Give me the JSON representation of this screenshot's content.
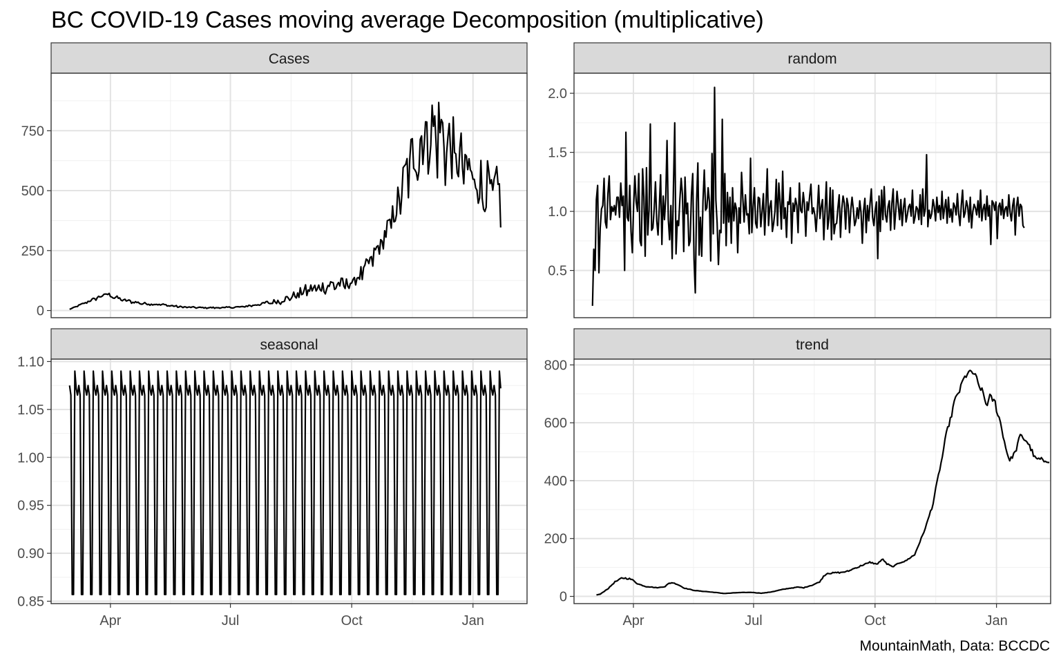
{
  "chart_data": {
    "type": "line",
    "title": "BC COVID-19 Cases moving average Decomposition (multiplicative)",
    "caption": "MountainMath, Data: BCCDC",
    "xlabel": "",
    "ylabel": "",
    "x_axis": {
      "tick_labels": [
        "Apr",
        "Jul",
        "Oct",
        "Jan"
      ],
      "tick_days": [
        31,
        122,
        214,
        306
      ],
      "minor_days": [
        76.5,
        168,
        260
      ],
      "xlim": [
        -14,
        347
      ]
    },
    "panels": [
      {
        "name": "Cases",
        "ylim": [
          -30,
          990
        ],
        "y_ticks": [
          0,
          250,
          500,
          750
        ],
        "y_tick_labels": [
          "0",
          "250",
          "500",
          "750"
        ],
        "y_minor": [
          125,
          375,
          625,
          875
        ],
        "knots": [
          [
            0,
            5
          ],
          [
            15,
            40
          ],
          [
            28,
            70
          ],
          [
            40,
            45
          ],
          [
            55,
            30
          ],
          [
            70,
            25
          ],
          [
            85,
            15
          ],
          [
            100,
            12
          ],
          [
            115,
            12
          ],
          [
            130,
            15
          ],
          [
            145,
            28
          ],
          [
            160,
            42
          ],
          [
            170,
            62
          ],
          [
            180,
            88
          ],
          [
            190,
            98
          ],
          [
            200,
            112
          ],
          [
            210,
            112
          ],
          [
            215,
            122
          ],
          [
            225,
            180
          ],
          [
            232,
            245
          ],
          [
            238,
            305
          ],
          [
            244,
            375
          ],
          [
            250,
            470
          ],
          [
            256,
            590
          ],
          [
            262,
            680
          ],
          [
            268,
            740
          ],
          [
            274,
            768
          ],
          [
            280,
            770
          ],
          [
            286,
            720
          ],
          [
            292,
            660
          ],
          [
            298,
            620
          ],
          [
            304,
            580
          ],
          [
            310,
            555
          ],
          [
            316,
            520
          ],
          [
            322,
            500
          ],
          [
            327,
            490
          ]
        ],
        "wiggle": [
          [
            0,
            0.1
          ],
          [
            170,
            0.28
          ],
          [
            215,
            0.22
          ],
          [
            245,
            0.15
          ],
          [
            262,
            0.2
          ],
          [
            327,
            0.22
          ]
        ]
      },
      {
        "name": "random",
        "ylim": [
          0.1,
          2.17
        ],
        "y_ticks": [
          0.5,
          1.0,
          1.5,
          2.0
        ],
        "y_tick_labels": [
          "0.5",
          "1.0",
          "1.5",
          "2.0"
        ],
        "y_minor": [
          0.25,
          0.75,
          1.25,
          1.75
        ],
        "series": [
          0.2,
          0.68,
          0.5,
          1.1,
          1.22,
          0.48,
          0.86,
          1.02,
          1.05,
          1.28,
          0.91,
          0.86,
          1.15,
          1.3,
          0.93,
          1.04,
          1.0,
          1.05,
          0.97,
          1.12,
          1.12,
          0.95,
          1.24,
          1.05,
          1.13,
          0.5,
          1.67,
          0.95,
          0.92,
          1.22,
          0.83,
          0.65,
          1.05,
          1.3,
          1.08,
          1.0,
          1.32,
          0.75,
          0.71,
          1.36,
          1.12,
          0.62,
          1.37,
          0.8,
          1.01,
          1.74,
          0.84,
          0.86,
          1.02,
          1.25,
          0.92,
          0.8,
          1.04,
          1.31,
          0.72,
          1.13,
          0.93,
          1.11,
          1.6,
          0.93,
          0.76,
          1.05,
          0.6,
          1.21,
          1.75,
          0.64,
          0.92,
          0.88,
          1.1,
          1.28,
          1.14,
          0.66,
          1.29,
          0.98,
          1.07,
          0.71,
          0.75,
          1.14,
          1.32,
          0.6,
          0.31,
          1.08,
          1.41,
          0.63,
          0.95,
          0.62,
          1.09,
          1.35,
          1.01,
          1.03,
          1.2,
          1.08,
          0.58,
          1.49,
          0.81,
          2.05,
          1.1,
          0.9,
          0.55,
          0.84,
          0.82,
          1.78,
          0.9,
          1.32,
          0.71,
          1.16,
          0.91,
          1.12,
          0.73,
          1.2,
          0.92,
          1.07,
          1.02,
          0.65,
          1.03,
          0.9,
          1.33,
          1.11,
          0.91,
          1.14,
          0.97,
          0.98,
          0.81,
          1.45,
          0.82,
          1.04,
          1.2,
          0.9,
          0.86,
          1.12,
          1.11,
          0.87,
          1.0,
          1.15,
          0.8,
          1.05,
          1.36,
          0.88,
          1.04,
          1.09,
          0.83,
          0.9,
          1.0,
          1.27,
          0.88,
          1.24,
          1.08,
          0.85,
          1.34,
          0.94,
          1.03,
          0.78,
          1.08,
          1.06,
          1.2,
          0.73,
          1.07,
          1.0,
          1.11,
          1.05,
          0.82,
          1.24,
          1.01,
          0.99,
          1.16,
          1.06,
          0.79,
          1.08,
          1.01,
          1.13,
          1.23,
          0.98,
          1.03,
          0.97,
          0.83,
          1.01,
          1.22,
          0.94,
          1.04,
          1.1,
          0.76,
          1.01,
          1.25,
          0.85,
          0.94,
          1.2,
          0.76,
          1.18,
          0.81,
          0.89,
          0.9,
          1.03,
          1.14,
          0.78,
          1.02,
          1.13,
          1.07,
          0.85,
          1.11,
          1.05,
          0.82,
          1.01,
          1.12,
          1.02,
          0.88,
          0.92,
          1.03,
          0.94,
          1.09,
          0.99,
          0.73,
          1.01,
          1.11,
          0.82,
          1.05,
          0.92,
          1.07,
          1.19,
          0.95,
          0.88,
          1.01,
          1.08,
          0.6,
          1.13,
          0.83,
          1.18,
          0.93,
          1.21,
          0.97,
          0.91,
          1.04,
          1.09,
          0.84,
          1.07,
          1.19,
          0.85,
          1.0,
          1.17,
          1.05,
          0.93,
          1.1,
          0.88,
          1.03,
          1.11,
          0.91,
          0.97,
          1.04,
          1.06,
          0.96,
          1.18,
          0.9,
          0.95,
          1.04,
          1.02,
          0.93,
          1.14,
          0.89,
          1.19,
          0.96,
          1.02,
          1.48,
          0.87,
          1.01,
          0.94,
          0.98,
          1.1,
          1.04,
          0.92,
          1.12,
          0.99,
          1.05,
          0.93,
          1.17,
          0.94,
          1.03,
          1.1,
          0.9,
          1.12,
          0.95,
          1.02,
          0.91,
          1.07,
          1.04,
          0.97,
          1.15,
          0.98,
          0.88,
          1.05,
          1.18,
          0.95,
          0.99,
          1.09,
          1.04,
          0.91,
          1.12,
          0.86,
          1.0,
          1.06,
          1.03,
          0.97,
          1.09,
          0.95,
          1.18,
          0.92,
          1.02,
          1.06,
          0.93,
          1.13,
          0.96,
          1.05,
          0.72,
          1.09,
          1.07,
          1.01,
          1.08,
          0.77,
          1.04,
          1.07,
          0.97,
          1.1,
          0.94,
          1.02,
          1.04,
          0.96,
          1.14,
          0.99,
          0.92,
          1.05,
          1.11,
          0.8,
          1.04,
          1.12,
          0.96,
          1.06,
          1.04,
          0.88,
          0.86
        ],
        "x_start": 0,
        "x_end": 327
      },
      {
        "name": "seasonal",
        "ylim": [
          0.8475,
          1.1025
        ],
        "y_ticks": [
          0.85,
          0.9,
          0.95,
          1.0,
          1.05,
          1.1
        ],
        "y_tick_labels": [
          "0.85",
          "0.90",
          "0.95",
          "1.00",
          "1.05",
          "1.10"
        ],
        "y_minor": [
          0.875,
          0.925,
          0.975,
          1.025,
          1.075
        ],
        "period": 7,
        "pattern": [
          1.075,
          1.065,
          0.857,
          0.857,
          1.09,
          1.072,
          1.065
        ],
        "x_start": 0,
        "x_end": 327
      },
      {
        "name": "trend",
        "ylim": [
          -25,
          820
        ],
        "y_ticks": [
          0,
          200,
          400,
          600,
          800
        ],
        "y_tick_labels": [
          "0",
          "200",
          "400",
          "600",
          "800"
        ],
        "y_minor": [
          100,
          300,
          500,
          700
        ],
        "knots": [
          [
            3,
            5
          ],
          [
            6,
            8
          ],
          [
            12,
            28
          ],
          [
            17,
            50
          ],
          [
            22,
            63
          ],
          [
            27,
            63
          ],
          [
            31,
            55
          ],
          [
            35,
            42
          ],
          [
            40,
            35
          ],
          [
            45,
            32
          ],
          [
            50,
            30
          ],
          [
            55,
            35
          ],
          [
            58,
            45
          ],
          [
            61,
            48
          ],
          [
            65,
            40
          ],
          [
            70,
            28
          ],
          [
            78,
            20
          ],
          [
            90,
            15
          ],
          [
            100,
            10
          ],
          [
            110,
            13
          ],
          [
            120,
            14
          ],
          [
            128,
            11
          ],
          [
            135,
            15
          ],
          [
            145,
            25
          ],
          [
            155,
            32
          ],
          [
            160,
            30
          ],
          [
            167,
            40
          ],
          [
            172,
            50
          ],
          [
            175,
            70
          ],
          [
            178,
            80
          ],
          [
            185,
            82
          ],
          [
            192,
            85
          ],
          [
            200,
            100
          ],
          [
            210,
            118
          ],
          [
            215,
            112
          ],
          [
            220,
            128
          ],
          [
            223,
            113
          ],
          [
            227,
            102
          ],
          [
            232,
            115
          ],
          [
            238,
            125
          ],
          [
            244,
            145
          ],
          [
            249,
            200
          ],
          [
            254,
            262
          ],
          [
            258,
            325
          ],
          [
            263,
            440
          ],
          [
            268,
            560
          ],
          [
            274,
            670
          ],
          [
            280,
            740
          ],
          [
            285,
            780
          ],
          [
            289,
            770
          ],
          [
            292,
            740
          ],
          [
            296,
            700
          ],
          [
            298,
            665
          ],
          [
            301,
            690
          ],
          [
            305,
            670
          ],
          [
            309,
            600
          ],
          [
            312,
            535
          ],
          [
            316,
            468
          ],
          [
            320,
            500
          ],
          [
            324,
            555
          ],
          [
            328,
            545
          ],
          [
            332,
            510
          ],
          [
            336,
            475
          ],
          [
            340,
            473
          ],
          [
            346,
            468
          ]
        ],
        "wiggle": [
          [
            3,
            0.04
          ],
          [
            270,
            0.015
          ],
          [
            346,
            0.015
          ]
        ]
      }
    ]
  }
}
